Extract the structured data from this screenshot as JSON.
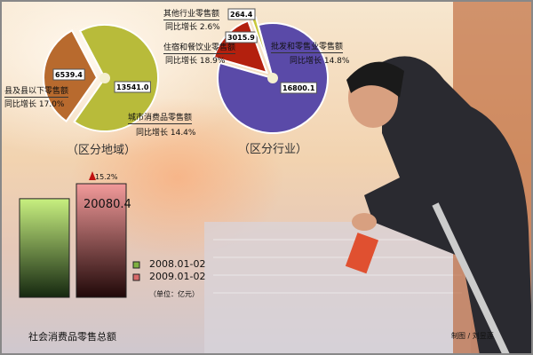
{
  "chart_data": [
    {
      "type": "pie",
      "title": "（区分地域）",
      "slices": [
        {
          "label": "县及县以下零售额",
          "value": 6539.4,
          "growth": "同比增长 17.0%",
          "color": "#b86a2e"
        },
        {
          "label": "城市消费品零售额",
          "value": 13541.0,
          "growth": "同比增长 14.4%",
          "color": "#b8bb3a"
        }
      ]
    },
    {
      "type": "pie",
      "title": "（区分行业）",
      "slices": [
        {
          "label": "住宿和餐饮业零售额",
          "value": 3015.9,
          "growth": "同比增长 18.9%",
          "color": "#b3200e"
        },
        {
          "label": "其他行业零售额",
          "value": 264.4,
          "growth": "同比增长 2.6%",
          "color": "#c8c83a"
        },
        {
          "label": "批发和零售业零售额",
          "value": 16800.1,
          "growth": "同比增长 14.8%",
          "color": "#5a4aa8"
        }
      ]
    },
    {
      "type": "bar",
      "xlabel": "社会消费品零售总额",
      "series": [
        {
          "name": "2008.01-02",
          "value": 17431,
          "color": "#7fb040"
        },
        {
          "name": "2009.01-02",
          "value": 20080.4,
          "value_label": "20080.4",
          "color": "#d86a6a"
        }
      ],
      "growth": "15.2%",
      "unit": "（单位：亿元）"
    }
  ],
  "credit": "制图 / 刘昱莲"
}
